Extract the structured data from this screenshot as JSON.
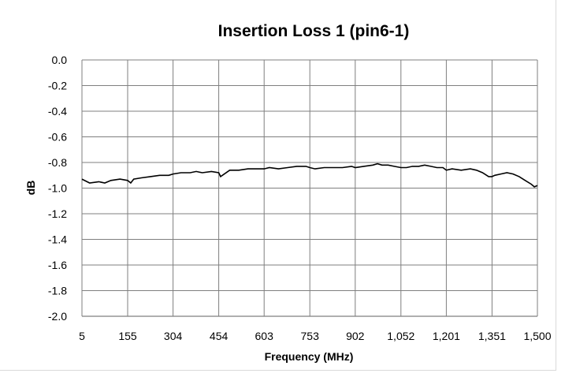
{
  "chart_data": {
    "type": "line",
    "title": "Insertion Loss 1 (pin6-1)",
    "xlabel": "Frequency (MHz)",
    "ylabel": "dB",
    "x_tick_labels": [
      "5",
      "155",
      "304",
      "454",
      "603",
      "753",
      "902",
      "1,052",
      "1,201",
      "1,351",
      "1,500"
    ],
    "x_ticks": [
      5,
      155,
      304,
      454,
      603,
      753,
      902,
      1052,
      1201,
      1351,
      1500
    ],
    "y_tick_labels": [
      "0.0",
      "-0.2",
      "-0.4",
      "-0.6",
      "-0.8",
      "-1.0",
      "-1.2",
      "-1.4",
      "-1.6",
      "-1.8",
      "-2.0"
    ],
    "y_ticks": [
      0,
      -0.2,
      -0.4,
      -0.6,
      -0.8,
      -1.0,
      -1.2,
      -1.4,
      -1.6,
      -1.8,
      -2.0
    ],
    "xlim": [
      5,
      1500
    ],
    "ylim": [
      -2.0,
      0.0
    ],
    "grid": true,
    "legend": "none",
    "line_color": "#000000",
    "series": [
      {
        "x": [
          5,
          30,
          60,
          80,
          100,
          130,
          155,
          165,
          175,
          200,
          230,
          260,
          290,
          304,
          330,
          360,
          380,
          400,
          430,
          454,
          460,
          490,
          520,
          550,
          580,
          603,
          620,
          650,
          680,
          710,
          740,
          753,
          770,
          800,
          830,
          860,
          890,
          902,
          930,
          960,
          975,
          990,
          1010,
          1030,
          1052,
          1070,
          1090,
          1110,
          1130,
          1150,
          1170,
          1190,
          1201,
          1220,
          1250,
          1280,
          1300,
          1320,
          1340,
          1351,
          1360,
          1380,
          1400,
          1420,
          1440,
          1460,
          1480,
          1490,
          1500
        ],
        "y": [
          -0.93,
          -0.96,
          -0.95,
          -0.96,
          -0.94,
          -0.93,
          -0.94,
          -0.96,
          -0.93,
          -0.92,
          -0.91,
          -0.9,
          -0.9,
          -0.89,
          -0.88,
          -0.88,
          -0.87,
          -0.88,
          -0.87,
          -0.88,
          -0.91,
          -0.86,
          -0.86,
          -0.85,
          -0.85,
          -0.85,
          -0.84,
          -0.85,
          -0.84,
          -0.83,
          -0.83,
          -0.84,
          -0.85,
          -0.84,
          -0.84,
          -0.84,
          -0.83,
          -0.84,
          -0.83,
          -0.82,
          -0.81,
          -0.82,
          -0.82,
          -0.83,
          -0.84,
          -0.84,
          -0.83,
          -0.83,
          -0.82,
          -0.83,
          -0.84,
          -0.84,
          -0.86,
          -0.85,
          -0.86,
          -0.85,
          -0.86,
          -0.88,
          -0.91,
          -0.91,
          -0.9,
          -0.89,
          -0.88,
          -0.89,
          -0.91,
          -0.94,
          -0.97,
          -0.99,
          -0.98
        ]
      }
    ]
  }
}
